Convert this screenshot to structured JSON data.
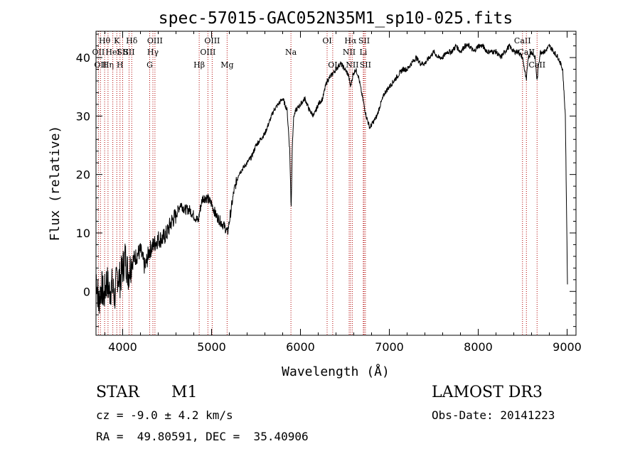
{
  "chart_data": {
    "type": "line",
    "title": "spec-57015-GAC052N35M1_sp10-025.fits",
    "xlabel": "Wavelength (Å)",
    "ylabel": "Flux (relative)",
    "xlim": [
      3700,
      9100
    ],
    "ylim": [
      -7.5,
      44.5
    ],
    "xticks": [
      4000,
      5000,
      6000,
      7000,
      8000,
      9000
    ],
    "yticks": [
      0,
      10,
      20,
      30,
      40
    ],
    "grid": false,
    "series": [
      {
        "name": "flux",
        "x": [
          3700,
          3730,
          3760,
          3790,
          3820,
          3850,
          3880,
          3910,
          3940,
          3970,
          4000,
          4030,
          4060,
          4100,
          4150,
          4200,
          4250,
          4300,
          4350,
          4400,
          4450,
          4500,
          4550,
          4600,
          4650,
          4700,
          4750,
          4800,
          4850,
          4870,
          4900,
          4950,
          5000,
          5050,
          5100,
          5150,
          5180,
          5200,
          5250,
          5300,
          5350,
          5400,
          5450,
          5500,
          5550,
          5600,
          5650,
          5700,
          5750,
          5800,
          5850,
          5880,
          5895,
          5910,
          5925,
          5950,
          6000,
          6050,
          6100,
          6150,
          6200,
          6250,
          6280,
          6300,
          6350,
          6400,
          6450,
          6500,
          6540,
          6563,
          6590,
          6620,
          6650,
          6700,
          6740,
          6780,
          6820,
          6860,
          6900,
          6950,
          7000,
          7050,
          7100,
          7150,
          7200,
          7250,
          7300,
          7350,
          7400,
          7450,
          7500,
          7550,
          7600,
          7650,
          7700,
          7750,
          7800,
          7850,
          7900,
          7950,
          8000,
          8050,
          8100,
          8150,
          8200,
          8250,
          8300,
          8350,
          8400,
          8450,
          8498,
          8520,
          8542,
          8560,
          8600,
          8640,
          8662,
          8680,
          8700,
          8750,
          8800,
          8850,
          8900,
          8950,
          8980,
          9000,
          9005
        ],
        "values": [
          3,
          -2,
          1,
          -1,
          2,
          0,
          1,
          -1,
          3,
          2,
          4,
          6,
          3,
          5,
          6,
          7,
          4,
          7,
          8,
          9,
          9,
          10,
          12,
          13,
          15,
          14,
          14,
          13,
          12,
          14,
          16,
          16,
          15,
          13,
          12,
          11,
          10,
          12,
          17,
          20,
          21,
          22,
          23,
          25,
          26,
          27,
          29,
          31,
          32,
          33,
          31,
          24,
          14,
          26,
          30,
          31,
          32,
          33,
          31,
          30,
          32,
          33,
          35,
          36,
          37,
          38,
          39,
          38,
          37,
          35,
          37,
          38,
          37,
          33,
          30,
          28,
          29,
          30,
          32,
          34,
          35,
          36,
          37,
          38,
          38,
          39,
          40,
          39,
          39,
          40,
          41,
          40,
          40,
          41,
          41,
          42,
          41,
          42,
          42,
          41,
          42,
          42,
          41,
          41,
          41,
          40,
          41,
          42,
          41,
          41,
          40,
          38,
          36,
          40,
          41,
          40,
          36,
          39,
          41,
          41,
          42,
          41,
          40,
          38,
          30,
          6,
          0
        ]
      }
    ],
    "lines": [
      {
        "w": 3727,
        "label": "OII",
        "row": 2
      },
      {
        "w": 3750,
        "label": "OII",
        "row": 3
      },
      {
        "w": 3797,
        "label": "Hθ",
        "row": 1
      },
      {
        "w": 3835,
        "label": "Hη",
        "row": 3
      },
      {
        "w": 3889,
        "label": "HeI",
        "row": 2
      },
      {
        "w": 3934,
        "label": "K",
        "row": 1
      },
      {
        "w": 3970,
        "label": "H",
        "row": 3
      },
      {
        "w": 4000,
        "label": "SII",
        "row": 2
      },
      {
        "w": 4072,
        "label": "SII",
        "row": 2
      },
      {
        "w": 4102,
        "label": "Hδ",
        "row": 1
      },
      {
        "w": 4304,
        "label": "G",
        "row": 3
      },
      {
        "w": 4340,
        "label": "Hγ",
        "row": 2
      },
      {
        "w": 4363,
        "label": "OIII",
        "row": 1
      },
      {
        "w": 4861,
        "label": "Hβ",
        "row": 3
      },
      {
        "w": 4959,
        "label": "OIII",
        "row": 2
      },
      {
        "w": 5007,
        "label": "OIII",
        "row": 1
      },
      {
        "w": 5175,
        "label": "Mg",
        "row": 3
      },
      {
        "w": 5893,
        "label": "Na",
        "row": 2
      },
      {
        "w": 6300,
        "label": "OI",
        "row": 1
      },
      {
        "w": 6363,
        "label": "OI",
        "row": 3
      },
      {
        "w": 6548,
        "label": "NII",
        "row": 2
      },
      {
        "w": 6563,
        "label": "Hα",
        "row": 1
      },
      {
        "w": 6583,
        "label": "NII",
        "row": 3
      },
      {
        "w": 6707,
        "label": "Li",
        "row": 2
      },
      {
        "w": 6716,
        "label": "SII",
        "row": 1
      },
      {
        "w": 6731,
        "label": "SII",
        "row": 3
      },
      {
        "w": 8498,
        "label": "CaII",
        "row": 1
      },
      {
        "w": 8542,
        "label": "CaII",
        "row": 2
      },
      {
        "w": 8662,
        "label": "CaII",
        "row": 3
      }
    ]
  },
  "info": {
    "object_type": "STAR",
    "subclass": "M1",
    "survey": "LAMOST DR3",
    "redshift": "cz = -9.0 ± 4.2 km/s",
    "obs_date": "Obs-Date: 20141223",
    "coords": "RA =  49.80591, DEC =  35.40906"
  }
}
